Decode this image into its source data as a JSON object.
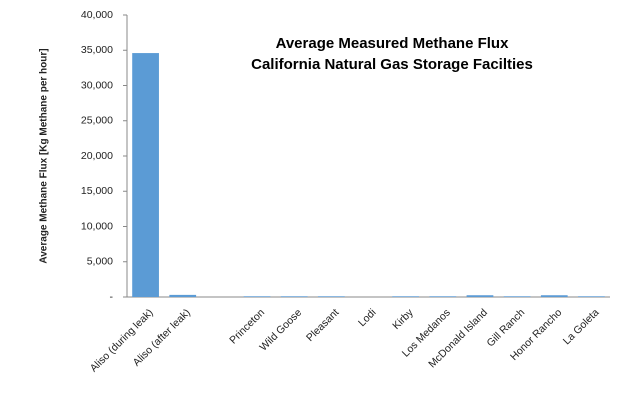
{
  "chart_data": {
    "type": "bar",
    "title": [
      "Average Measured Methane Flux",
      "California Natural Gas Storage Facilties"
    ],
    "y_label": "Average Methane Flux [Kg Methane per hour]",
    "categories": [
      "Aliso (during leak)",
      "Aliso (after leak)",
      null,
      "Princeton",
      "Wild Goose",
      "Pleasant",
      "Lodi",
      "Kirby",
      "Los Medanos",
      "McDonald Island",
      "Gill Ranch",
      "Honor Rancho",
      "La Goleta"
    ],
    "values": [
      34600,
      300,
      null,
      100,
      100,
      100,
      0,
      100,
      100,
      250,
      100,
      250,
      100
    ],
    "color": "#5b9bd5",
    "ylim": [
      0,
      40000
    ],
    "yticks": [
      {
        "value": 0,
        "label": "-"
      },
      {
        "value": 5000,
        "label": "5,000"
      },
      {
        "value": 10000,
        "label": "10,000"
      },
      {
        "value": 15000,
        "label": "15,000"
      },
      {
        "value": 20000,
        "label": "20,000"
      },
      {
        "value": 25000,
        "label": "25,000"
      },
      {
        "value": 30000,
        "label": "30,000"
      },
      {
        "value": 35000,
        "label": "35,000"
      },
      {
        "value": 40000,
        "label": "40,000"
      }
    ],
    "grid": false
  }
}
